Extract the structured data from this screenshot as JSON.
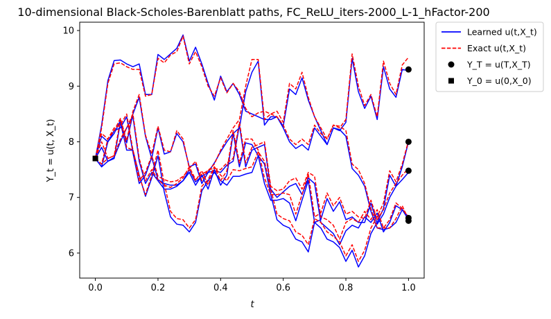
{
  "chart_data": {
    "type": "line",
    "title": "10-dimensional Black-Scholes-Barenblatt paths, FC_ReLU_iters-2000_L-1_hFactor-200",
    "xlabel": "t",
    "ylabel": "Y_t = u(t, X_t)",
    "xlim": [
      -0.05,
      1.05
    ],
    "ylim": [
      5.55,
      10.15
    ],
    "xticks": [
      0.0,
      0.2,
      0.4,
      0.6,
      0.8,
      1.0
    ],
    "xtick_labels": [
      "0.0",
      "0.2",
      "0.4",
      "0.6",
      "0.8",
      "1.0"
    ],
    "yticks": [
      6,
      7,
      8,
      9,
      10
    ],
    "ytick_labels": [
      "6",
      "7",
      "8",
      "9",
      "10"
    ],
    "grid": false,
    "legend_position": "outside-top-right",
    "legend": [
      {
        "label": "Learned u(t,X_t)",
        "style": "line",
        "color": "#0000ff"
      },
      {
        "label": "Exact u(t,X_t)",
        "style": "dashed",
        "color": "#ff0000"
      },
      {
        "label": "Y_T = u(T,X_T)",
        "style": "circle",
        "color": "#000000"
      },
      {
        "label": "Y_0 = u(0,X_0)",
        "style": "square",
        "color": "#000000"
      }
    ],
    "x": [
      0.0,
      0.02,
      0.04,
      0.06,
      0.08,
      0.1,
      0.12,
      0.14,
      0.16,
      0.18,
      0.2,
      0.22,
      0.24,
      0.26,
      0.28,
      0.3,
      0.32,
      0.34,
      0.36,
      0.38,
      0.4,
      0.42,
      0.44,
      0.46,
      0.48,
      0.5,
      0.52,
      0.54,
      0.56,
      0.58,
      0.6,
      0.62,
      0.64,
      0.66,
      0.68,
      0.7,
      0.72,
      0.74,
      0.76,
      0.78,
      0.8,
      0.82,
      0.84,
      0.86,
      0.88,
      0.9,
      0.92,
      0.94,
      0.96,
      0.98,
      1.0
    ],
    "learned": [
      [
        7.7,
        8.3,
        9.1,
        9.46,
        9.47,
        9.4,
        9.35,
        9.4,
        8.85,
        8.85,
        9.57,
        9.48,
        9.58,
        9.68,
        9.92,
        9.45,
        9.7,
        9.4,
        9.05,
        8.75,
        9.18,
        8.9,
        9.05,
        8.85,
        8.55,
        8.5,
        8.45,
        8.4,
        8.4,
        8.45,
        8.25,
        8.0,
        7.88,
        7.95,
        7.85,
        8.25,
        8.1,
        7.95,
        8.25,
        8.22,
        8.1,
        7.52,
        7.4,
        7.2,
        6.75,
        6.45,
        6.42,
        6.45,
        6.55,
        6.78,
        6.65
      ],
      [
        7.7,
        7.55,
        8.0,
        8.15,
        8.38,
        7.98,
        8.5,
        8.8,
        8.1,
        7.7,
        8.25,
        7.78,
        7.82,
        8.15,
        8.0,
        7.55,
        7.6,
        7.25,
        7.45,
        7.48,
        7.45,
        7.58,
        7.65,
        8.3,
        7.55,
        7.85,
        7.9,
        7.95,
        7.15,
        7.0,
        7.1,
        7.2,
        7.25,
        7.05,
        7.35,
        7.25,
        6.55,
        6.45,
        6.35,
        6.15,
        6.4,
        6.5,
        6.45,
        6.65,
        6.55,
        6.72,
        6.38,
        6.55,
        6.85,
        6.78,
        6.6
      ],
      [
        7.7,
        7.55,
        7.65,
        7.72,
        8.0,
        8.25,
        8.45,
        7.65,
        7.25,
        7.45,
        7.3,
        7.15,
        7.15,
        7.2,
        7.3,
        7.5,
        7.28,
        7.38,
        7.45,
        7.62,
        7.82,
        8.0,
        8.15,
        8.25,
        8.9,
        9.25,
        9.45,
        8.3,
        8.45,
        8.45,
        8.28,
        8.95,
        8.85,
        9.15,
        8.75,
        8.45,
        8.2,
        7.95,
        8.25,
        8.2,
        8.35,
        9.5,
        8.9,
        8.6,
        8.82,
        8.4,
        9.35,
        8.95,
        8.8,
        9.3,
        9.28
      ],
      [
        7.7,
        7.9,
        7.65,
        7.7,
        8.35,
        7.85,
        7.85,
        7.4,
        7.02,
        7.35,
        7.75,
        7.1,
        6.65,
        6.52,
        6.5,
        6.38,
        6.55,
        7.12,
        7.3,
        7.45,
        7.3,
        7.22,
        7.38,
        7.38,
        7.42,
        7.45,
        7.75,
        7.6,
        7.05,
        6.6,
        6.5,
        6.45,
        6.25,
        6.2,
        6.02,
        6.55,
        6.45,
        6.25,
        6.2,
        6.1,
        5.85,
        6.05,
        5.75,
        5.95,
        6.35,
        6.55,
        6.8,
        7.4,
        7.2,
        7.55,
        8.0
      ],
      [
        7.7,
        8.1,
        8.0,
        8.2,
        8.25,
        8.45,
        7.8,
        7.25,
        7.4,
        7.72,
        7.32,
        7.25,
        7.22,
        7.22,
        7.3,
        7.45,
        7.22,
        7.4,
        7.15,
        7.5,
        7.22,
        7.4,
        8.15,
        7.55,
        7.98,
        7.95,
        7.75,
        7.25,
        6.95,
        6.95,
        6.98,
        6.9,
        6.58,
        6.95,
        7.3,
        6.55,
        6.6,
        6.98,
        6.75,
        6.92,
        6.6,
        6.65,
        6.55,
        6.55,
        6.9,
        6.52,
        6.7,
        7.0,
        7.2,
        7.32,
        7.45
      ]
    ],
    "exact": [
      [
        7.7,
        8.25,
        9.05,
        9.4,
        9.42,
        9.35,
        9.3,
        9.3,
        8.82,
        8.85,
        9.5,
        9.42,
        9.56,
        9.62,
        9.9,
        9.4,
        9.62,
        9.35,
        9.0,
        8.82,
        9.15,
        8.88,
        9.05,
        8.9,
        8.6,
        8.45,
        8.52,
        8.55,
        8.5,
        8.45,
        8.3,
        8.05,
        7.95,
        8.05,
        7.95,
        8.3,
        8.15,
        8.05,
        8.3,
        8.28,
        8.2,
        7.6,
        7.5,
        7.25,
        6.8,
        6.45,
        6.45,
        6.45,
        6.62,
        6.85,
        6.6
      ],
      [
        7.7,
        7.6,
        8.05,
        8.2,
        8.42,
        8.02,
        8.55,
        8.85,
        8.12,
        7.78,
        8.28,
        7.85,
        7.82,
        8.2,
        8.05,
        7.52,
        7.65,
        7.3,
        7.5,
        7.52,
        7.5,
        7.62,
        7.7,
        8.35,
        7.62,
        7.9,
        7.95,
        8.0,
        7.2,
        7.12,
        7.15,
        7.3,
        7.35,
        7.15,
        7.45,
        7.38,
        6.65,
        6.6,
        6.5,
        6.25,
        6.55,
        6.62,
        6.55,
        6.75,
        6.6,
        6.78,
        6.45,
        6.6,
        6.9,
        6.8,
        6.65
      ],
      [
        7.7,
        7.6,
        7.7,
        7.75,
        8.05,
        8.25,
        8.5,
        7.7,
        7.3,
        7.5,
        7.32,
        7.22,
        7.18,
        7.25,
        7.35,
        7.55,
        7.32,
        7.42,
        7.48,
        7.6,
        7.85,
        8.05,
        8.25,
        8.4,
        9.0,
        9.48,
        9.48,
        8.4,
        8.5,
        8.55,
        8.35,
        9.05,
        8.95,
        9.25,
        8.8,
        8.45,
        8.25,
        8.05,
        8.3,
        8.25,
        8.4,
        9.58,
        9.0,
        8.65,
        8.85,
        8.45,
        9.45,
        9.05,
        8.85,
        9.38,
        9.52
      ],
      [
        7.7,
        8.0,
        7.7,
        7.75,
        8.4,
        7.9,
        7.85,
        7.38,
        7.05,
        7.4,
        7.85,
        7.25,
        6.75,
        6.62,
        6.6,
        6.45,
        6.6,
        7.2,
        7.32,
        7.55,
        7.4,
        7.3,
        7.5,
        7.48,
        7.52,
        7.55,
        7.82,
        7.65,
        7.15,
        6.7,
        6.62,
        6.58,
        6.38,
        6.32,
        6.15,
        6.62,
        6.55,
        6.38,
        6.3,
        6.2,
        5.95,
        6.15,
        5.85,
        6.05,
        6.45,
        6.65,
        6.9,
        7.48,
        7.28,
        7.6,
        8.02
      ],
      [
        7.7,
        8.15,
        8.05,
        8.25,
        8.3,
        8.5,
        7.85,
        7.3,
        7.45,
        7.75,
        7.38,
        7.32,
        7.28,
        7.3,
        7.38,
        7.5,
        7.3,
        7.48,
        7.22,
        7.55,
        7.3,
        7.48,
        8.2,
        7.62,
        8.05,
        8.05,
        7.85,
        7.35,
        7.05,
        7.05,
        7.08,
        7.05,
        6.7,
        7.05,
        7.42,
        6.65,
        6.72,
        7.08,
        6.85,
        7.0,
        6.7,
        6.75,
        6.65,
        6.62,
        6.95,
        6.6,
        6.78,
        7.08,
        7.25,
        7.4,
        7.52
      ]
    ],
    "terminal_points": {
      "x": 1.0,
      "y": [
        9.3,
        8.0,
        7.48,
        6.63,
        6.58
      ]
    },
    "initial_point": {
      "x": 0.0,
      "y": 7.7
    }
  }
}
